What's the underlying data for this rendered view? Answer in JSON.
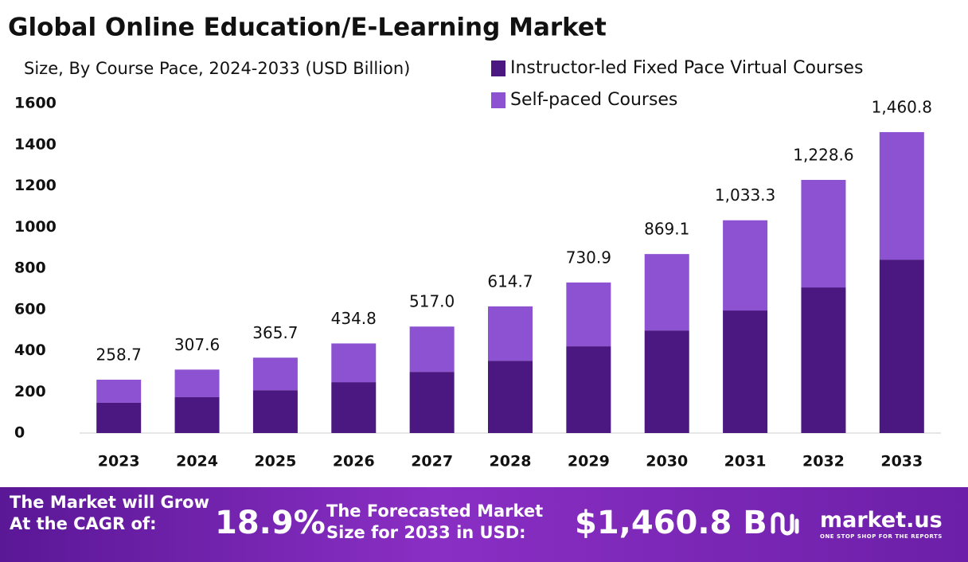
{
  "chart_data": {
    "type": "stacked_bar",
    "title": "Global Online Education/E-Learning Market",
    "subtitle": "Size, By Course Pace, 2024-2033 (USD Billion)",
    "categories": [
      "2023",
      "2024",
      "2025",
      "2026",
      "2027",
      "2028",
      "2029",
      "2030",
      "2031",
      "2032",
      "2033"
    ],
    "series": [
      {
        "name": "Instructor-led Fixed Pace Virtual Courses",
        "color": "#4b1780",
        "values": [
          147,
          174,
          208,
          247,
          297,
          351,
          421,
          498,
          595,
          707,
          842
        ]
      },
      {
        "name": "Self-paced Courses",
        "color": "#8c52d1",
        "values": [
          112,
          134,
          158,
          188,
          220,
          264,
          310,
          371,
          438,
          522,
          619
        ]
      }
    ],
    "totals": [
      258.7,
      307.6,
      365.7,
      434.8,
      517.0,
      614.7,
      730.9,
      869.1,
      1033.3,
      1228.6,
      1460.8
    ],
    "total_labels": [
      "258.7",
      "307.6",
      "365.7",
      "434.8",
      "517.0",
      "614.7",
      "730.9",
      "869.1",
      "1,033.3",
      "1,228.6",
      "1,460.8"
    ],
    "ylim": [
      0,
      1600
    ],
    "yticks": [
      0,
      200,
      400,
      600,
      800,
      1000,
      1200,
      1400,
      1600
    ],
    "grid": false
  },
  "footer": {
    "cagr_label": [
      "The Market will Grow",
      "At the CAGR of:"
    ],
    "cagr_value": "18.9%",
    "forecast_label": [
      "The Forecasted Market",
      "Size for 2033 in USD:"
    ],
    "forecast_value": "$1,460.8 B",
    "logo": "market.us",
    "tagline": "ONE STOP SHOP FOR THE REPORTS"
  }
}
